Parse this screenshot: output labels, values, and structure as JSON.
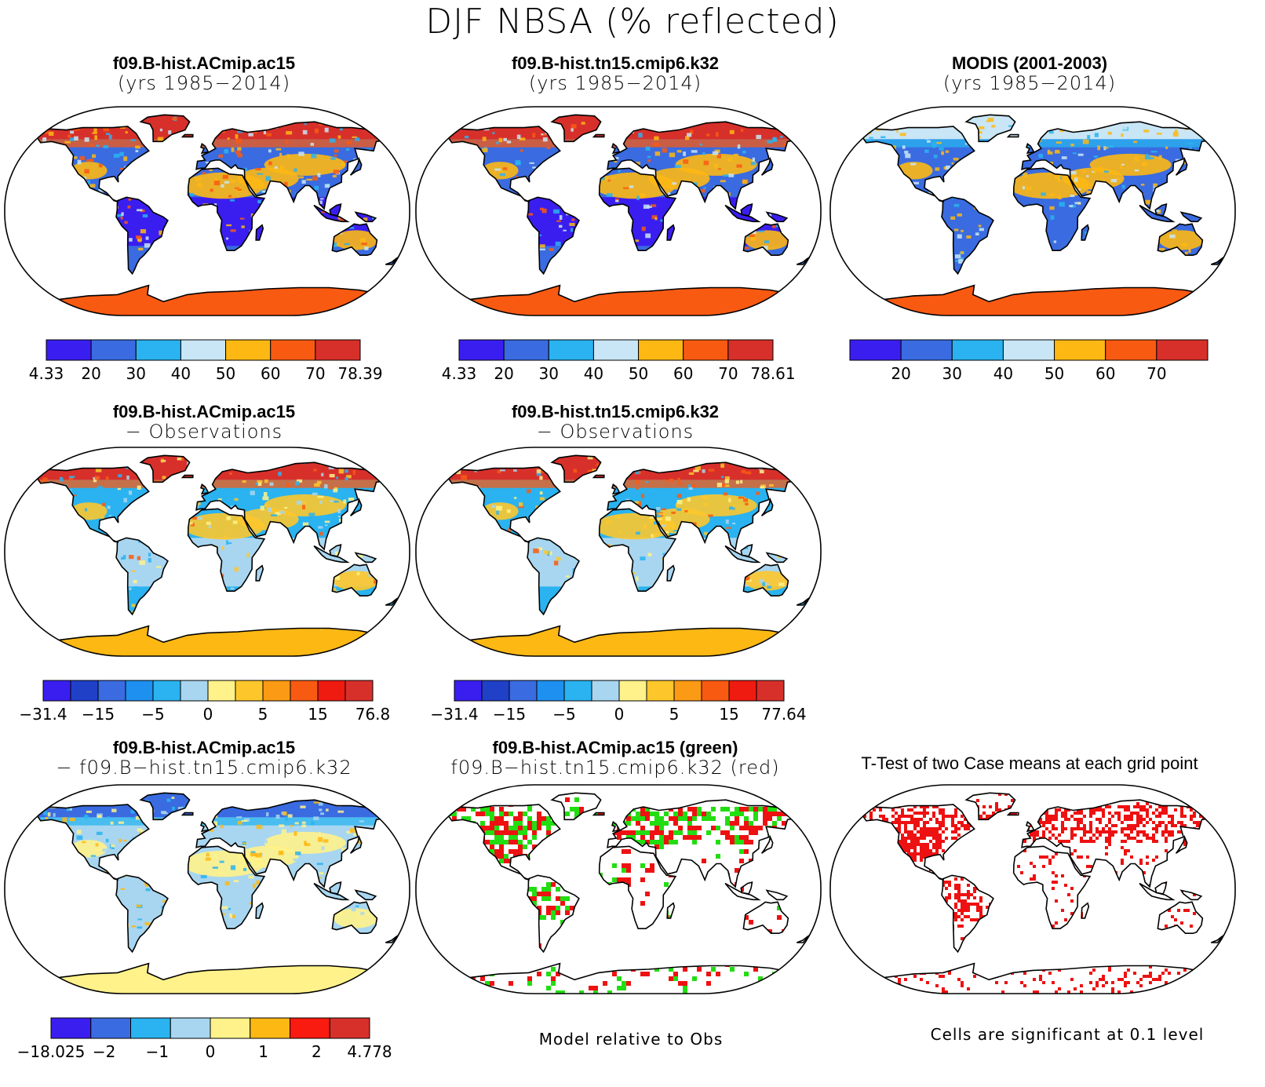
{
  "title": "DJF NBSA (% reflected)",
  "panels": [
    {
      "id": "p1",
      "title1": "f09.B-hist.ACmip.ac15",
      "title2": "(yrs 1985−2014)",
      "kind": "model",
      "colorbar": {
        "colors": [
          "#3a1ef0",
          "#3a6be0",
          "#2ab3f0",
          "#c8e6f5",
          "#fdb814",
          "#f95a12",
          "#d7302b"
        ],
        "labels": [
          "4.33",
          "20",
          "30",
          "40",
          "50",
          "60",
          "70",
          "78.39"
        ]
      }
    },
    {
      "id": "p2",
      "title1": "f09.B-hist.tn15.cmip6.k32",
      "title2": "(yrs 1985−2014)",
      "kind": "model",
      "colorbar": {
        "colors": [
          "#3a1ef0",
          "#3a6be0",
          "#2ab3f0",
          "#c8e6f5",
          "#fdb814",
          "#f95a12",
          "#d7302b"
        ],
        "labels": [
          "4.33",
          "20",
          "30",
          "40",
          "50",
          "60",
          "70",
          "78.61"
        ]
      }
    },
    {
      "id": "p3",
      "title1": "MODIS (2001-2003)",
      "title2": "(yrs 1985−2014)",
      "kind": "obs",
      "colorbar": {
        "colors": [
          "#3a1ef0",
          "#3a6be0",
          "#2ab3f0",
          "#c8e6f5",
          "#fdb814",
          "#f95a12",
          "#d7302b"
        ],
        "labels": [
          "",
          "20",
          "30",
          "40",
          "50",
          "60",
          "70",
          ""
        ]
      }
    },
    {
      "id": "p4",
      "title1": "f09.B-hist.ACmip.ac15",
      "title2": "− Observations",
      "kind": "diff",
      "colorbar": {
        "colors": [
          "#3a1ef0",
          "#2040c8",
          "#3a6be0",
          "#1e90f0",
          "#2ab3f0",
          "#a8d6f0",
          "#fff28a",
          "#fdc72c",
          "#fb9a14",
          "#f95a12",
          "#ef1a10",
          "#d7302b"
        ],
        "labels": [
          "−31.4",
          "−15",
          "−5",
          "0",
          "5",
          "15",
          "76.8"
        ]
      }
    },
    {
      "id": "p5",
      "title1": "f09.B-hist.tn15.cmip6.k32",
      "title2": "− Observations",
      "kind": "diff",
      "colorbar": {
        "colors": [
          "#3a1ef0",
          "#2040c8",
          "#3a6be0",
          "#1e90f0",
          "#2ab3f0",
          "#a8d6f0",
          "#fff28a",
          "#fdc72c",
          "#fb9a14",
          "#f95a12",
          "#ef1a10",
          "#d7302b"
        ],
        "labels": [
          "−31.4",
          "−15",
          "−5",
          "0",
          "5",
          "15",
          "77.64"
        ]
      }
    },
    {
      "id": "p6",
      "title1": "f09.B-hist.ACmip.ac15",
      "title2": "− f09.B−hist.tn15.cmip6.k32",
      "kind": "casediff",
      "colorbar": {
        "colors": [
          "#3a1ef0",
          "#3a6be0",
          "#2ab3f0",
          "#a8d6f0",
          "#fff28a",
          "#fdb814",
          "#f91a10",
          "#d7302b"
        ],
        "labels": [
          "−18.025",
          "−2",
          "−1",
          "0",
          "1",
          "2",
          "4.778"
        ]
      }
    },
    {
      "id": "p7",
      "title1": "f09.B-hist.ACmip.ac15 (green)",
      "title2": "f09.B−hist.tn15.cmip6.k32 (red)",
      "kind": "rel",
      "note": "Model relative to Obs"
    },
    {
      "id": "p8",
      "title1": "T-Test of two Case means at each grid point",
      "title2": "",
      "kind": "ttest",
      "note": "Cells are significant at 0.1 level"
    }
  ]
}
